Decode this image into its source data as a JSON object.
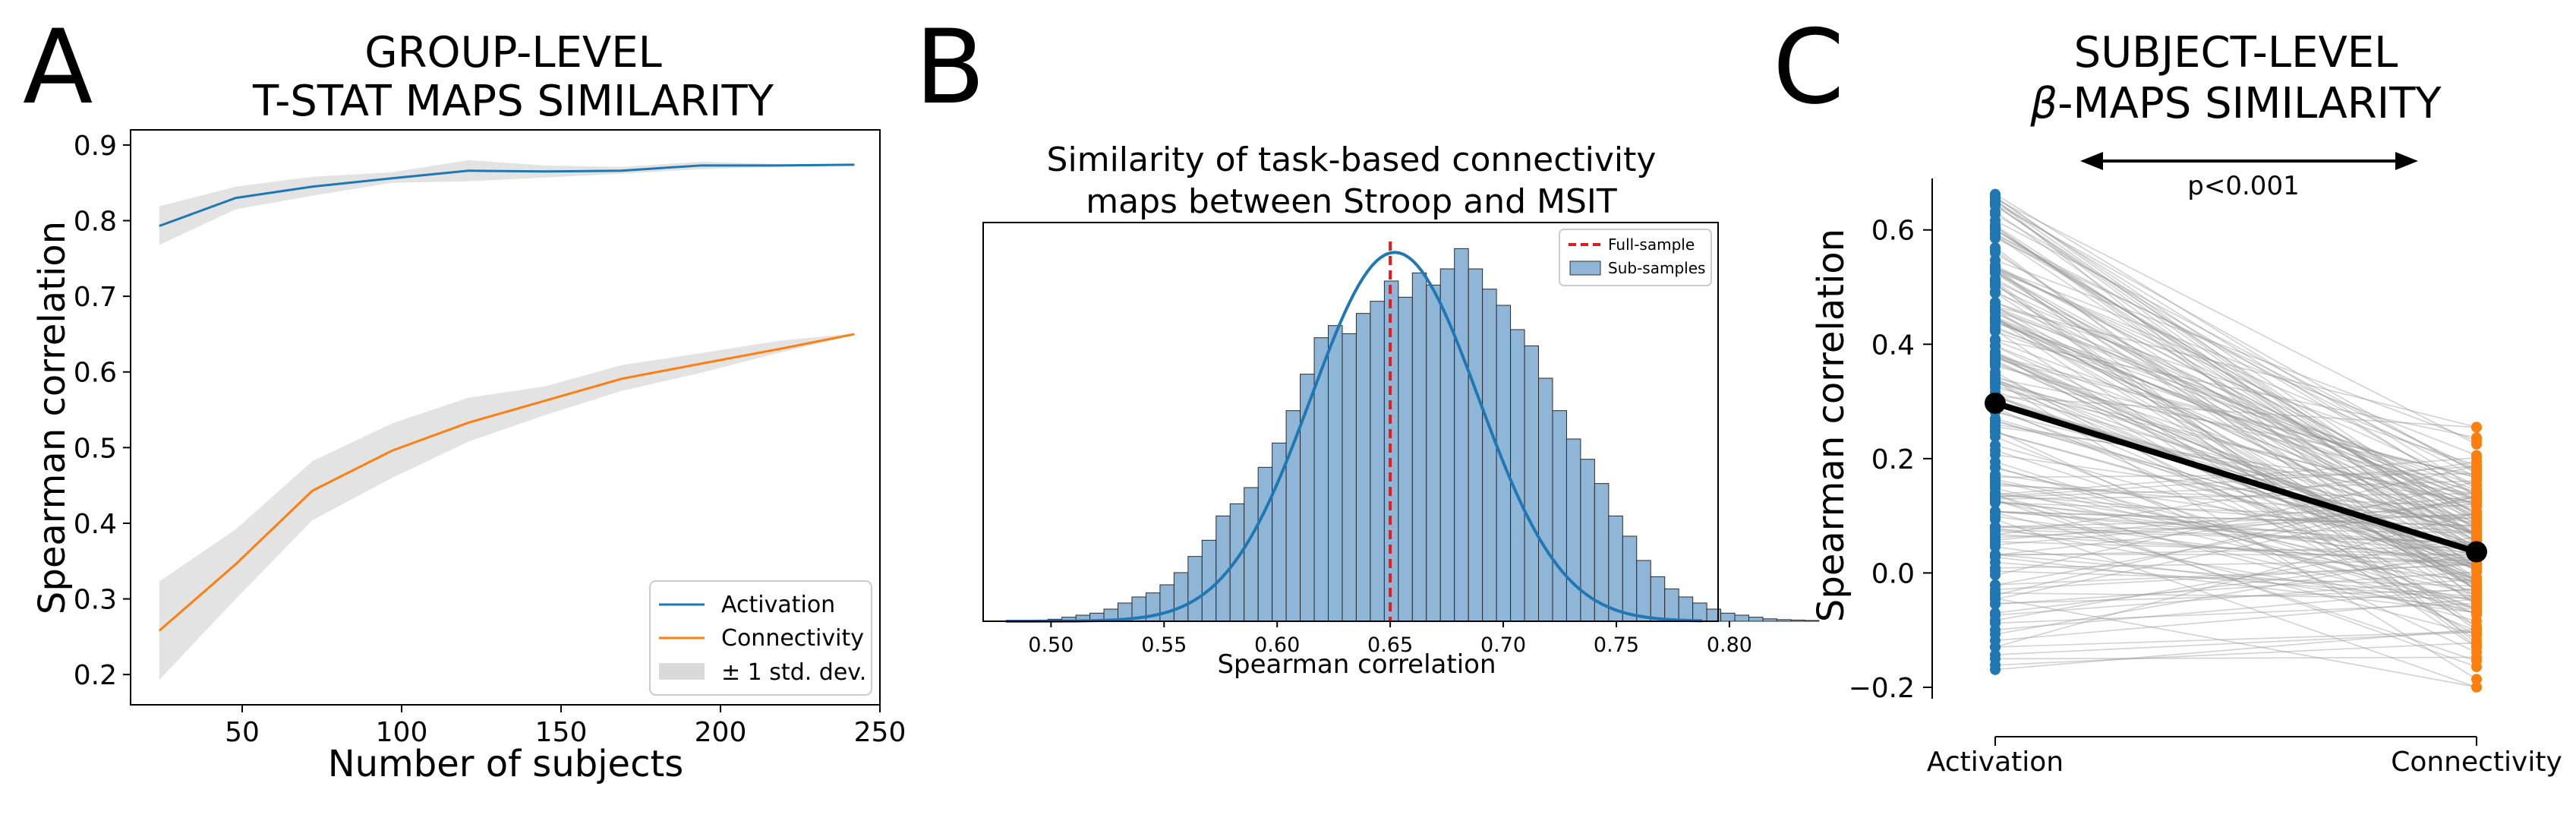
{
  "panels": {
    "A": {
      "letter": "A",
      "title_line1": "GROUP-LEVEL",
      "title_line2": "T-STAT MAPS SIMILARITY"
    },
    "B": {
      "letter": "B",
      "title_line1": "Similarity of task-based connectivity",
      "title_line2": "maps between Stroop and MSIT"
    },
    "C": {
      "letter": "C",
      "title_line1": "SUBJECT-LEVEL",
      "title_line2_symbol": "β",
      "title_line2_rest": "-MAPS SIMILARITY",
      "annotation": "p<0.001"
    }
  },
  "colors": {
    "activation": "#1f77b4",
    "connectivity": "#ff7f0e",
    "band": "#d9d9d9",
    "hist_fill": "#8fb6d6",
    "full_sample_line": "#e41a1c",
    "pair_lines": "#9a9a9a",
    "mean_line": "#000000"
  },
  "chart_data": [
    {
      "type": "line",
      "panel": "A",
      "xlabel": "Number of subjects",
      "ylabel": "Spearman correlation",
      "xlim": [
        15,
        250
      ],
      "ylim": [
        0.16,
        0.92
      ],
      "xticks": [
        50,
        100,
        150,
        200,
        250
      ],
      "yticks": [
        0.2,
        0.3,
        0.4,
        0.5,
        0.6,
        0.7,
        0.8,
        0.9
      ],
      "x": [
        24,
        48,
        72,
        97,
        121,
        145,
        169,
        194,
        218,
        242
      ],
      "series": [
        {
          "name": "Activation",
          "values": [
            0.793,
            0.83,
            0.845,
            0.856,
            0.866,
            0.865,
            0.866,
            0.873,
            0.873,
            0.874
          ],
          "lower": [
            0.768,
            0.815,
            0.833,
            0.85,
            0.852,
            0.857,
            0.862,
            0.868,
            0.871,
            0.873
          ],
          "upper": [
            0.819,
            0.845,
            0.858,
            0.864,
            0.88,
            0.873,
            0.871,
            0.878,
            0.875,
            0.875
          ]
        },
        {
          "name": "Connectivity",
          "values": [
            0.258,
            0.346,
            0.443,
            0.496,
            0.533,
            0.562,
            0.591,
            0.611,
            0.63,
            0.65
          ],
          "lower": [
            0.193,
            0.3,
            0.404,
            0.46,
            0.508,
            0.543,
            0.575,
            0.599,
            0.625,
            0.649
          ],
          "upper": [
            0.323,
            0.392,
            0.482,
            0.532,
            0.566,
            0.581,
            0.609,
            0.625,
            0.641,
            0.651
          ]
        }
      ],
      "legend": {
        "position": "lower right",
        "entries": [
          "Activation",
          "Connectivity",
          "± 1 std. dev."
        ]
      }
    },
    {
      "type": "bar",
      "panel": "B",
      "xlabel": "Spearman correlation",
      "xlim": [
        0.47,
        0.795
      ],
      "xticks": [
        0.5,
        0.55,
        0.6,
        0.65,
        0.7,
        0.75,
        0.8
      ],
      "xtick_labels": [
        "0.50",
        "0.55",
        "0.60",
        "0.65",
        "0.70",
        "0.75",
        "0.80"
      ],
      "bin_start": 0.48,
      "bin_width": 0.0062,
      "counts": [
        0.1,
        0.2,
        0.3,
        0.5,
        1,
        1.5,
        2,
        3,
        4.5,
        6,
        7,
        9,
        12,
        16,
        20,
        26,
        29,
        33,
        38,
        44,
        52,
        61,
        70,
        73,
        71,
        76,
        79,
        84,
        80,
        86,
        83,
        87,
        92,
        87,
        82,
        78,
        72,
        68,
        60,
        52,
        45,
        40,
        34,
        26,
        21,
        15,
        11,
        8,
        6,
        4.5,
        3,
        2,
        1.5,
        1,
        0.6,
        0.4,
        0.3,
        0.2
      ],
      "kde_peak_x": 0.652,
      "kde_sd": 0.037,
      "full_sample": 0.65,
      "legend": {
        "position": "top-right",
        "entries": [
          "Full-sample",
          "Sub-samples"
        ]
      }
    },
    {
      "type": "scatter",
      "panel": "C",
      "ylabel": "Spearman correlation",
      "categories": [
        "Activation",
        "Connectivity"
      ],
      "ylim": [
        -0.22,
        0.69
      ],
      "yticks": [
        -0.2,
        0.0,
        0.2,
        0.4,
        0.6
      ],
      "ytick_labels": [
        "−0.2",
        "0.0",
        "0.2",
        "0.4",
        "0.6"
      ],
      "mean": [
        0.297,
        0.037
      ],
      "n_pairs": 200,
      "activation_range": [
        -0.175,
        0.67
      ],
      "connectivity_range": [
        -0.2,
        0.28
      ]
    }
  ]
}
